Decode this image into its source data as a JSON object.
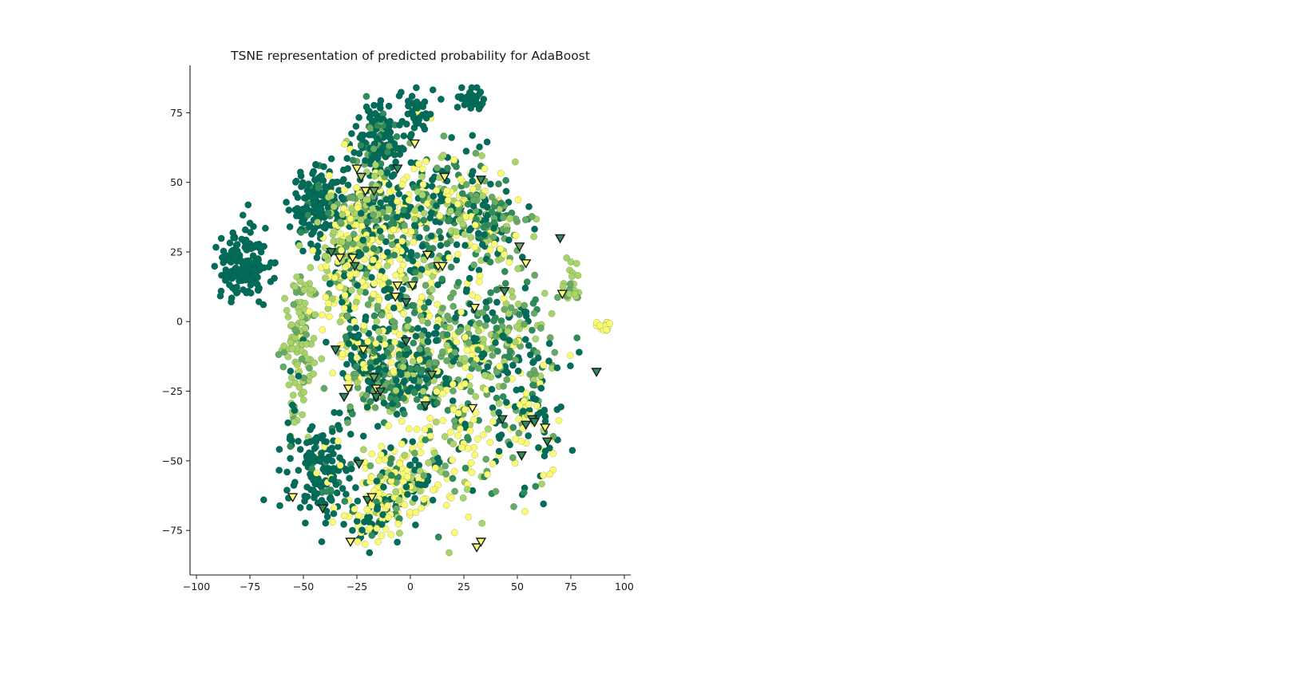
{
  "chart_data": {
    "type": "scatter",
    "title": "TSNE representation of predicted probability for AdaBoost",
    "xlabel": "",
    "ylabel": "",
    "xlim": [
      -103,
      103
    ],
    "ylim": [
      -91,
      92
    ],
    "x_ticks": [
      -100,
      -75,
      -50,
      -25,
      0,
      25,
      50,
      75,
      100
    ],
    "y_ticks": [
      -75,
      -50,
      -25,
      0,
      25,
      50,
      75
    ],
    "grid": false,
    "legend": "none",
    "spines": [
      "left",
      "bottom"
    ],
    "colors": {
      "high_prob": "#006d5b",
      "mid_high": "#2e8c5a",
      "mid": "#66aa66",
      "mid_low": "#a8d46a",
      "low_prob": "#fbfb73",
      "marker_edge": "#1a1a1a"
    },
    "point_markers": "circle",
    "misclassified_markers": "triangle-down",
    "clusters": [
      {
        "center": [
          -78,
          20
        ],
        "spread": [
          6,
          7
        ],
        "n": 160,
        "mix": [
          1,
          0,
          0,
          0,
          0
        ]
      },
      {
        "center": [
          -44,
          42
        ],
        "spread": [
          6,
          7
        ],
        "n": 160,
        "mix": [
          0.9,
          0.1,
          0,
          0,
          0
        ]
      },
      {
        "center": [
          -15,
          65
        ],
        "spread": [
          6,
          7
        ],
        "n": 140,
        "mix": [
          0.85,
          0.1,
          0.05,
          0,
          0
        ]
      },
      {
        "center": [
          -52,
          -8
        ],
        "spread": [
          4,
          13
        ],
        "n": 130,
        "mix": [
          0.05,
          0,
          0.15,
          0.75,
          0.05
        ]
      },
      {
        "center": [
          -42,
          -52
        ],
        "spread": [
          8,
          8
        ],
        "n": 160,
        "mix": [
          0.85,
          0.1,
          0,
          0,
          0.05
        ]
      },
      {
        "center": [
          -5,
          -58
        ],
        "spread": [
          10,
          8
        ],
        "n": 170,
        "mix": [
          0.25,
          0.1,
          0.05,
          0.1,
          0.5
        ]
      },
      {
        "center": [
          -10,
          22
        ],
        "spread": [
          10,
          12
        ],
        "n": 180,
        "mix": [
          0.25,
          0.1,
          0.05,
          0.05,
          0.55
        ]
      },
      {
        "center": [
          -10,
          40
        ],
        "spread": [
          14,
          10
        ],
        "n": 200,
        "mix": [
          0.35,
          0.2,
          0.15,
          0.1,
          0.2
        ]
      },
      {
        "center": [
          20,
          42
        ],
        "spread": [
          10,
          10
        ],
        "n": 180,
        "mix": [
          0.3,
          0.1,
          0.15,
          0.15,
          0.3
        ]
      },
      {
        "center": [
          40,
          35
        ],
        "spread": [
          8,
          8
        ],
        "n": 120,
        "mix": [
          0.2,
          0.15,
          0.25,
          0.25,
          0.15
        ]
      },
      {
        "center": [
          10,
          -5
        ],
        "spread": [
          18,
          12
        ],
        "n": 260,
        "mix": [
          0.3,
          0.15,
          0.2,
          0.15,
          0.2
        ]
      },
      {
        "center": [
          45,
          -10
        ],
        "spread": [
          12,
          12
        ],
        "n": 180,
        "mix": [
          0.2,
          0.15,
          0.3,
          0.2,
          0.15
        ]
      },
      {
        "center": [
          -20,
          -15
        ],
        "spread": [
          8,
          10
        ],
        "n": 140,
        "mix": [
          0.3,
          0.1,
          0.1,
          0.1,
          0.4
        ]
      },
      {
        "center": [
          -3,
          -20
        ],
        "spread": [
          10,
          6
        ],
        "n": 140,
        "mix": [
          0.45,
          0.25,
          0.15,
          0.1,
          0.05
        ]
      },
      {
        "center": [
          25,
          -40
        ],
        "spread": [
          12,
          14
        ],
        "n": 150,
        "mix": [
          0.15,
          0.1,
          0.15,
          0.2,
          0.4
        ]
      },
      {
        "center": [
          60,
          -40
        ],
        "spread": [
          6,
          12
        ],
        "n": 60,
        "mix": [
          0.35,
          0.1,
          0.05,
          0.1,
          0.4
        ]
      },
      {
        "center": [
          -20,
          -70
        ],
        "spread": [
          8,
          6
        ],
        "n": 60,
        "mix": [
          0.3,
          0.05,
          0,
          0.05,
          0.6
        ]
      },
      {
        "center": [
          -35,
          25
        ],
        "spread": [
          6,
          5
        ],
        "n": 50,
        "mix": [
          0.2,
          0.1,
          0.1,
          0.2,
          0.4
        ]
      },
      {
        "center": [
          28,
          80
        ],
        "spread": [
          3,
          2
        ],
        "n": 35,
        "mix": [
          1,
          0,
          0,
          0,
          0
        ]
      },
      {
        "center": [
          3,
          75
        ],
        "spread": [
          3,
          4
        ],
        "n": 30,
        "mix": [
          0.9,
          0,
          0,
          0,
          0.1
        ]
      },
      {
        "center": [
          75,
          15
        ],
        "spread": [
          2,
          4
        ],
        "n": 25,
        "mix": [
          0,
          0,
          0.2,
          0.8,
          0
        ]
      },
      {
        "center": [
          91,
          -1
        ],
        "spread": [
          1.5,
          1.2
        ],
        "n": 15,
        "mix": [
          0,
          0,
          0,
          0,
          1
        ]
      },
      {
        "center": [
          -22,
          38
        ],
        "spread": [
          6,
          6
        ],
        "n": 80,
        "mix": [
          0.1,
          0.1,
          0.2,
          0.3,
          0.3
        ]
      },
      {
        "center": [
          -30,
          15
        ],
        "spread": [
          6,
          8
        ],
        "n": 60,
        "mix": [
          0.2,
          0.05,
          0.1,
          0.15,
          0.5
        ]
      }
    ],
    "triangles": [
      {
        "x": -25,
        "y": 55,
        "c": 4
      },
      {
        "x": -23,
        "y": 52,
        "c": 3
      },
      {
        "x": -21,
        "y": 47,
        "c": 4
      },
      {
        "x": -17,
        "y": 47,
        "c": 2
      },
      {
        "x": -6,
        "y": 55,
        "c": 1
      },
      {
        "x": 2,
        "y": 64,
        "c": 4
      },
      {
        "x": 16,
        "y": 52,
        "c": 4
      },
      {
        "x": 33,
        "y": 51,
        "c": 1
      },
      {
        "x": -37,
        "y": 25,
        "c": 1
      },
      {
        "x": -33,
        "y": 23,
        "c": 4
      },
      {
        "x": -27,
        "y": 23,
        "c": 4
      },
      {
        "x": -26,
        "y": 20,
        "c": 1
      },
      {
        "x": 8,
        "y": 24,
        "c": 4
      },
      {
        "x": 13,
        "y": 20,
        "c": 4
      },
      {
        "x": 15,
        "y": 20,
        "c": 4
      },
      {
        "x": -6,
        "y": 13,
        "c": 4
      },
      {
        "x": 1,
        "y": 13,
        "c": 4
      },
      {
        "x": -7,
        "y": 9,
        "c": 4
      },
      {
        "x": -2,
        "y": 7,
        "c": 1
      },
      {
        "x": 30,
        "y": 5,
        "c": 4
      },
      {
        "x": 44,
        "y": 11,
        "c": 1
      },
      {
        "x": 51,
        "y": 27,
        "c": 2
      },
      {
        "x": 54,
        "y": 21,
        "c": 4
      },
      {
        "x": 70,
        "y": 30,
        "c": 1
      },
      {
        "x": 71,
        "y": 10,
        "c": 4
      },
      {
        "x": -35,
        "y": -10,
        "c": 1
      },
      {
        "x": -22,
        "y": -10,
        "c": 4
      },
      {
        "x": -2,
        "y": -7,
        "c": 1
      },
      {
        "x": -17,
        "y": -20,
        "c": 2
      },
      {
        "x": -16,
        "y": -24,
        "c": 4
      },
      {
        "x": -14,
        "y": -25,
        "c": 1
      },
      {
        "x": -16,
        "y": -27,
        "c": 1
      },
      {
        "x": -29,
        "y": -24,
        "c": 4
      },
      {
        "x": -31,
        "y": -27,
        "c": 1
      },
      {
        "x": 10,
        "y": -19,
        "c": 2
      },
      {
        "x": 7,
        "y": -30,
        "c": 1
      },
      {
        "x": 29,
        "y": -31,
        "c": 4
      },
      {
        "x": 43,
        "y": -35,
        "c": 1
      },
      {
        "x": 54,
        "y": -37,
        "c": 1
      },
      {
        "x": 57,
        "y": -35,
        "c": 1
      },
      {
        "x": 58,
        "y": -36,
        "c": 1
      },
      {
        "x": 63,
        "y": -38,
        "c": 4
      },
      {
        "x": 64,
        "y": -43,
        "c": 1
      },
      {
        "x": 52,
        "y": -48,
        "c": 1
      },
      {
        "x": -24,
        "y": -51,
        "c": 1
      },
      {
        "x": -55,
        "y": -63,
        "c": 4
      },
      {
        "x": -41,
        "y": -67,
        "c": 1
      },
      {
        "x": -20,
        "y": -64,
        "c": 1
      },
      {
        "x": -18,
        "y": -63,
        "c": 4
      },
      {
        "x": -28,
        "y": -79,
        "c": 4
      },
      {
        "x": 31,
        "y": -81,
        "c": 4
      },
      {
        "x": 33,
        "y": -79,
        "c": 4
      },
      {
        "x": 87,
        "y": -18,
        "c": 1
      }
    ]
  }
}
